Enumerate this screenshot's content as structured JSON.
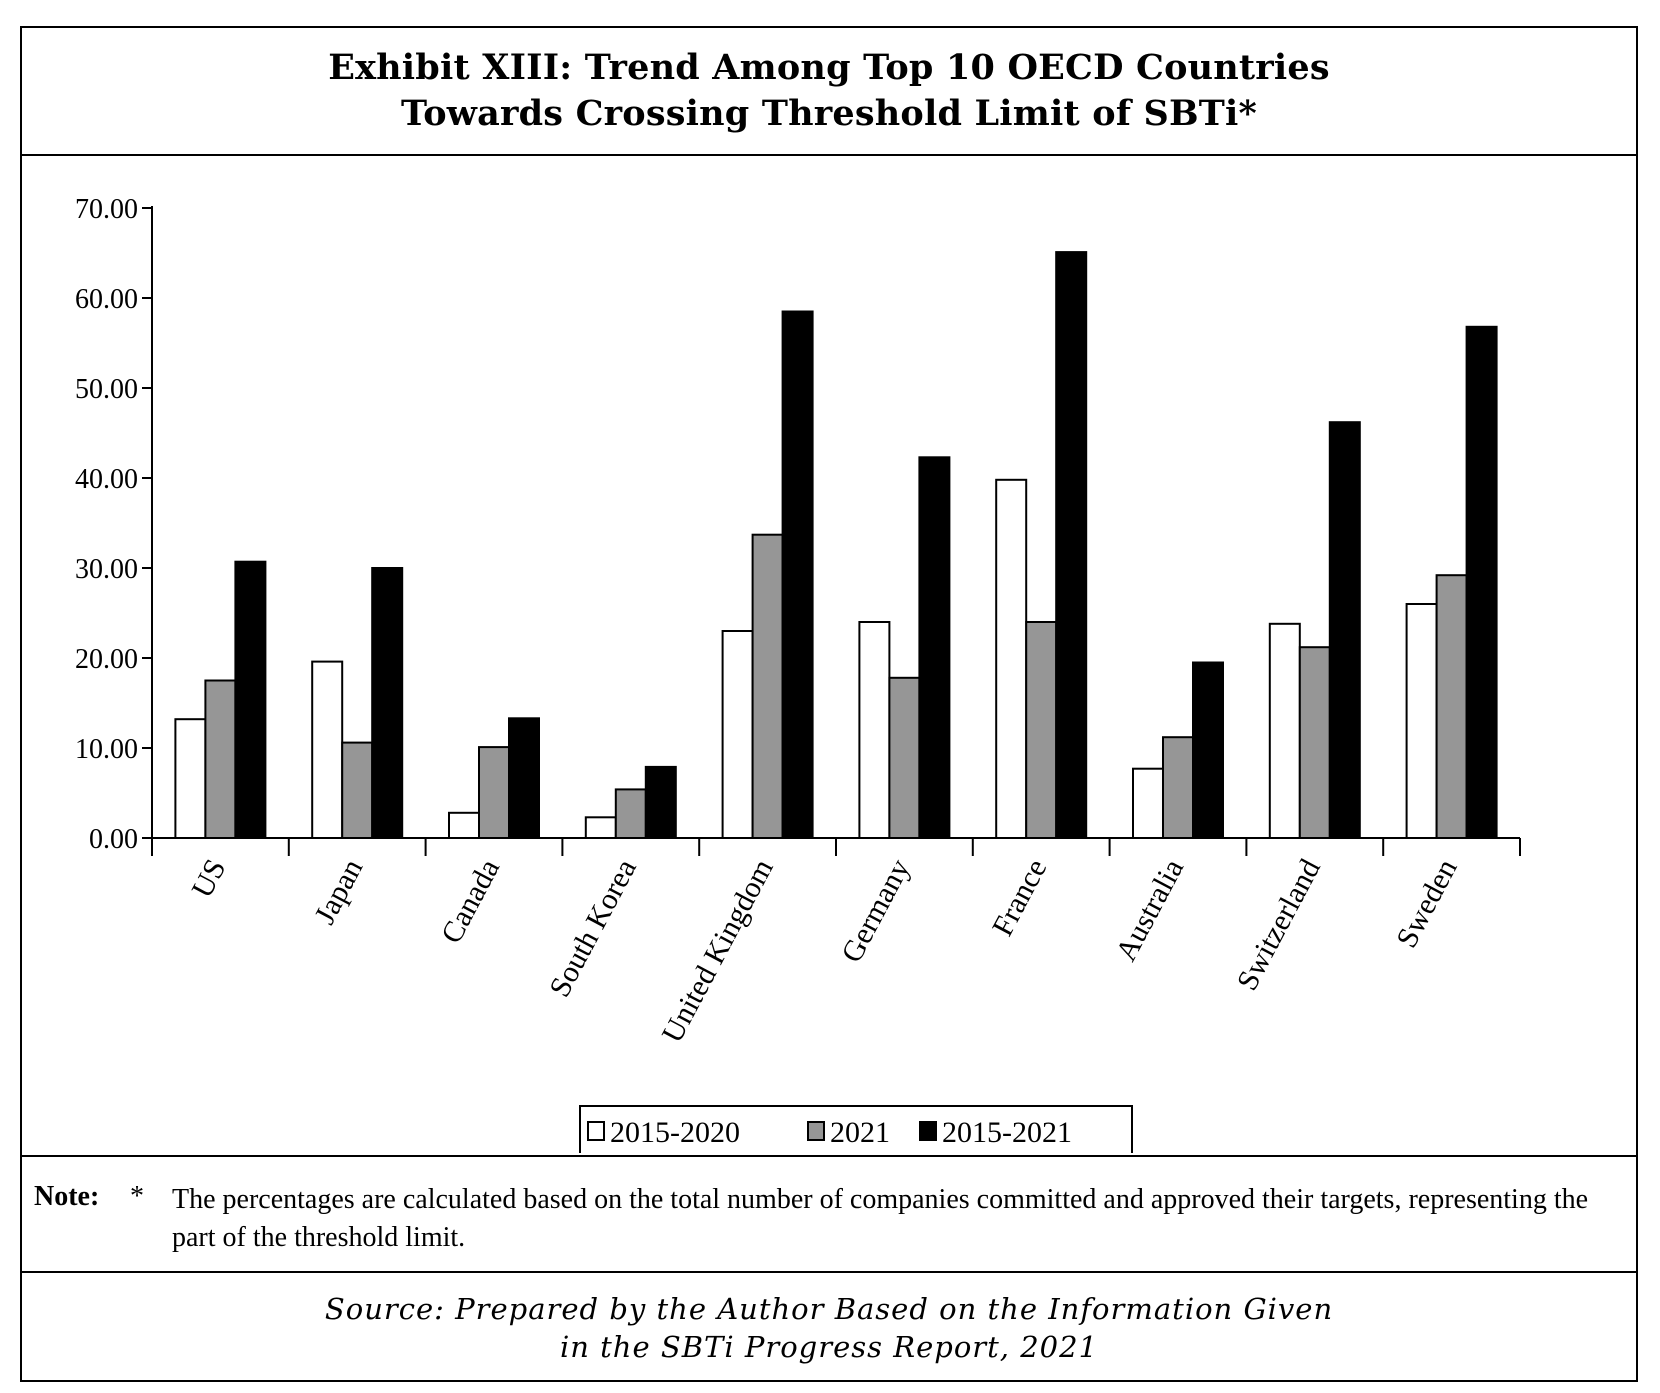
{
  "title": {
    "line1": "Exhibit XIII: Trend Among Top 10 OECD Countries",
    "line2": "Towards Crossing Threshold Limit of SBTi*"
  },
  "note": {
    "label": "Note:",
    "marker": "*",
    "text": "The percentages are calculated based on the total number of companies committed and approved their targets, representing the part of the threshold limit."
  },
  "source": {
    "line1": "Source: Prepared by the Author Based on the Information Given",
    "line2": "in the SBTi Progress Report, 2021"
  },
  "chart_data": {
    "type": "bar",
    "title": "",
    "xlabel": "",
    "ylabel": "",
    "ylim": [
      0,
      70
    ],
    "y_ticks": [
      "0.00",
      "10.00",
      "20.00",
      "30.00",
      "40.00",
      "50.00",
      "60.00",
      "70.00"
    ],
    "categories": [
      "US",
      "Japan",
      "Canada",
      "South Korea",
      "United Kingdom",
      "Germany",
      "France",
      "Australia",
      "Switzerland",
      "Sweden"
    ],
    "series": [
      {
        "name": "2015-2020",
        "color": "#ffffff",
        "values": [
          13.2,
          19.6,
          2.8,
          2.3,
          23.0,
          24.0,
          39.8,
          7.7,
          23.8,
          26.0
        ]
      },
      {
        "name": "2021",
        "color": "#969696",
        "values": [
          17.5,
          10.6,
          10.1,
          5.4,
          33.7,
          17.8,
          24.0,
          11.2,
          21.2,
          29.2
        ]
      },
      {
        "name": "2015-2021",
        "color": "#000000",
        "values": [
          30.7,
          30.0,
          13.3,
          7.9,
          58.5,
          42.3,
          65.1,
          19.5,
          46.2,
          56.8
        ]
      }
    ],
    "grid": false,
    "legend_position": "bottom-center"
  }
}
